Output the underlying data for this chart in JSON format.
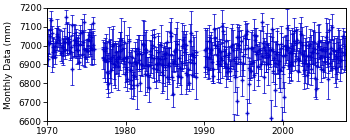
{
  "ylabel": "Monthly Data (mm)",
  "xlim": [
    1970,
    2008
  ],
  "ylim": [
    6600,
    7200
  ],
  "yticks": [
    6600,
    6700,
    6800,
    6900,
    7000,
    7100,
    7200
  ],
  "xticks": [
    1970,
    1980,
    1990,
    2000
  ],
  "color": "#0000cc",
  "marker": "+",
  "markersize": 3.5,
  "linewidth": 0.5,
  "capsize": 1.2,
  "elinewidth": 0.6,
  "alpha": 0.9
}
